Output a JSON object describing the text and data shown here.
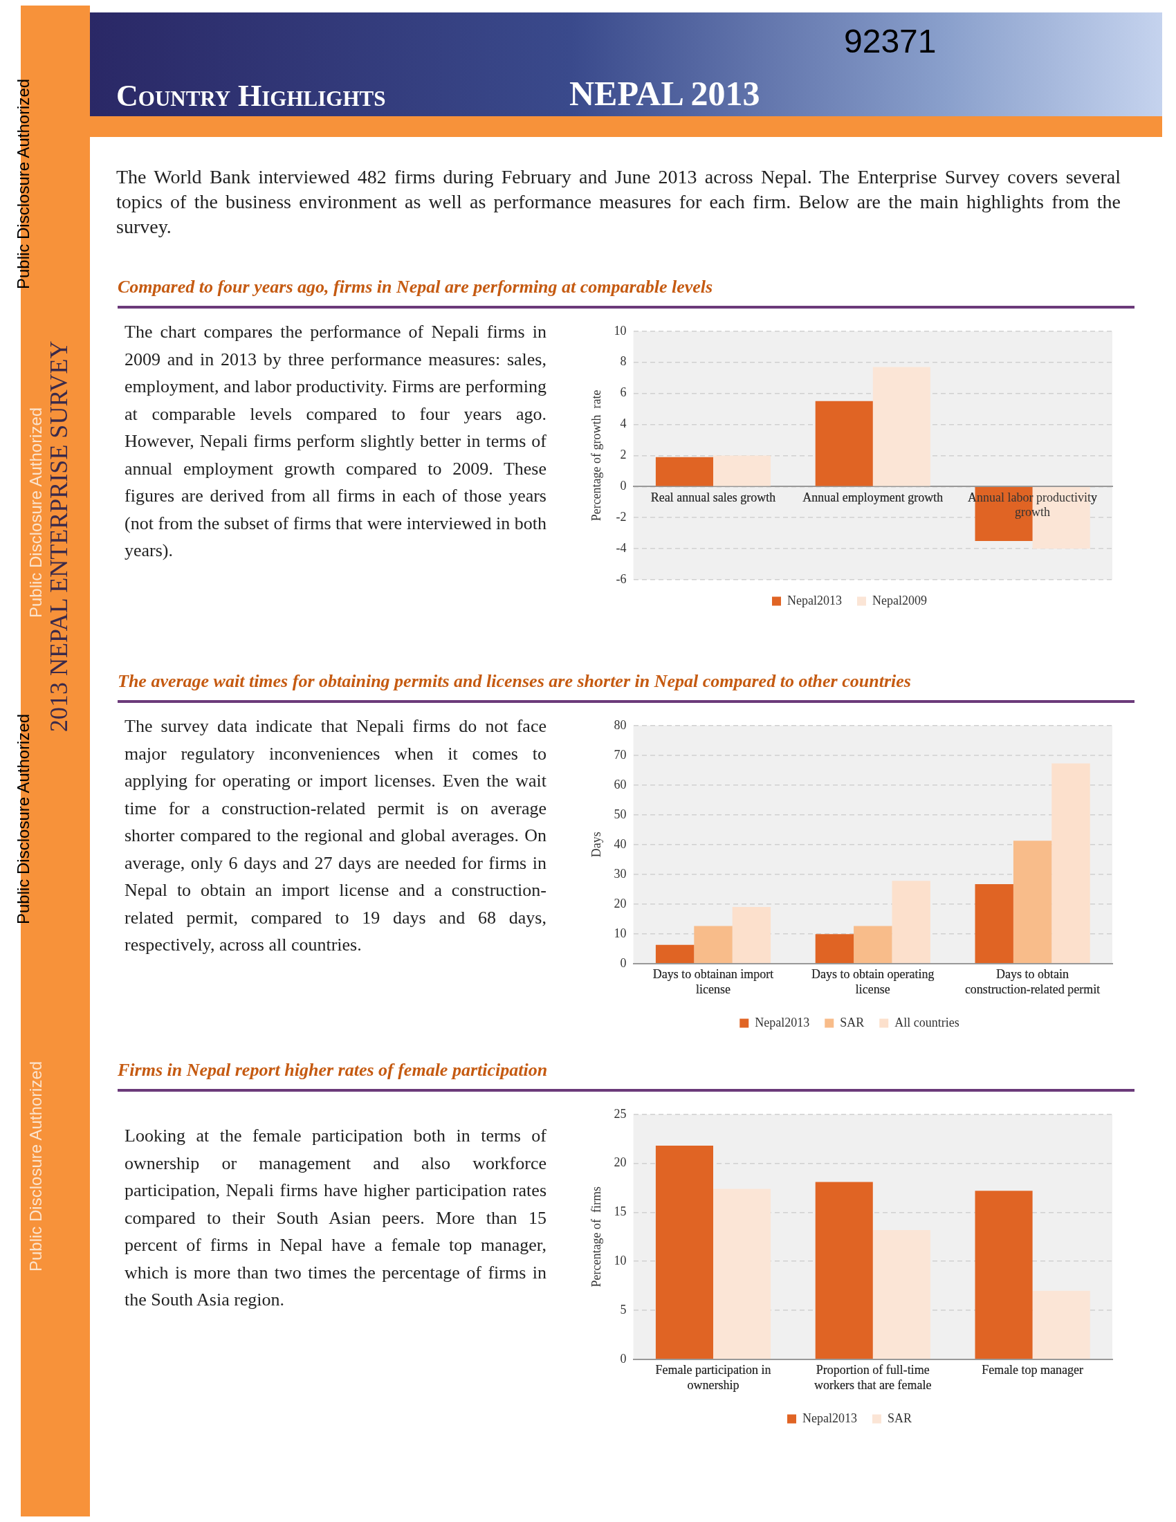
{
  "chart_data": [
    {
      "type": "bar",
      "title": "Compared to four years ago, firms in Nepal are performing at comparable levels",
      "ylabel": "Percentage of growth  rate",
      "categories": [
        "Real annual sales growth",
        "Annual employment growth",
        "Annual labor productivity growth"
      ],
      "series": [
        {
          "name": "Nepal2013",
          "color": "#e06424",
          "values": [
            1.9,
            5.5,
            -3.5
          ]
        },
        {
          "name": "Nepal2009",
          "color": "#fbe5d6",
          "values": [
            2.0,
            7.7,
            -4.0
          ]
        }
      ],
      "ylim": [
        -6,
        10
      ],
      "yticks": [
        -6,
        -4,
        -2,
        0,
        2,
        4,
        6,
        8,
        10
      ],
      "grid": "y",
      "legend": "bottom",
      "annotations": [
        "Public Disclosure Authorized",
        "Public Disclosure Authorized",
        "Public Disclosure Authorized",
        "Public Disclosure Authorized",
        "2013 NEPAL ENTERPRISE SURVEY",
        "Country Highlights",
        "NEPAL 2013",
        "92371",
        "The World Bank interviewed 482 firms during February and June 2013 across Nepal. The Enterprise Survey covers several topics of the business environment as well as performance measures for each firm. Below are the main highlights from the survey.",
        "The chart compares the performance of Nepali firms in 2009 and in 2013 by three performance measures: sales, employment, and labor productivity.  Firms are performing at comparable levels compared to four years ago. However, Nepali firms perform slightly better in terms of annual employment growth compared to 2009.  These figures are derived from all firms in each of those years (not from the subset of firms that were interviewed in both years)."
      ]
    },
    {
      "type": "bar",
      "title": "The average wait times for obtaining permits and licenses are shorter in Nepal compared to other countries",
      "ylabel": "Days",
      "categories": [
        "Days to obtainan import license",
        "Days to obtain operating license",
        "Days to obtain construction-related permit"
      ],
      "series": [
        {
          "name": "Nepal2013",
          "color": "#e06424",
          "values": [
            6.3,
            9.9,
            26.7
          ]
        },
        {
          "name": "SAR",
          "color": "#f8bc8a",
          "values": [
            12.6,
            12.6,
            41.3
          ]
        },
        {
          "name": "All countries",
          "color": "#fce0cc",
          "values": [
            19.0,
            27.8,
            67.3
          ]
        }
      ],
      "ylim": [
        0,
        80
      ],
      "yticks": [
        0,
        10,
        20,
        30,
        40,
        50,
        60,
        70,
        80
      ],
      "grid": "y",
      "legend": "bottom",
      "annotations": [
        "The survey data indicate that Nepali firms do not face major regulatory inconveniences when it comes to applying for operating or import licenses. Even the wait time for a construction-related permit is on average shorter compared to the regional and global averages.  On average, only 6 days and 27 days are needed for firms in Nepal to obtain an import license and a construction-related permit, compared to 19 days and 68 days, respectively, across all countries."
      ]
    },
    {
      "type": "bar",
      "title": "Firms in Nepal report higher rates of female participation",
      "ylabel": "Percentage of  firms",
      "categories": [
        "Female participation in ownership",
        "Proportion of full-time workers that are female",
        "Female top manager"
      ],
      "series": [
        {
          "name": "Nepal2013",
          "color": "#e06424",
          "values": [
            21.8,
            18.1,
            17.2
          ]
        },
        {
          "name": "SAR",
          "color": "#fbe5d6",
          "values": [
            17.4,
            13.2,
            7.0
          ]
        }
      ],
      "ylim": [
        0,
        25
      ],
      "yticks": [
        0,
        5,
        10,
        15,
        20,
        25
      ],
      "grid": "y",
      "legend": "bottom",
      "annotations": [
        "Looking at the female participation both in terms of ownership or management and also workforce participation, Nepali firms have higher participation rates compared to their South Asian peers.  More than 15 percent of firms in Nepal have a female top manager, which is more than two times the percentage of firms in the South Asia region."
      ]
    }
  ]
}
